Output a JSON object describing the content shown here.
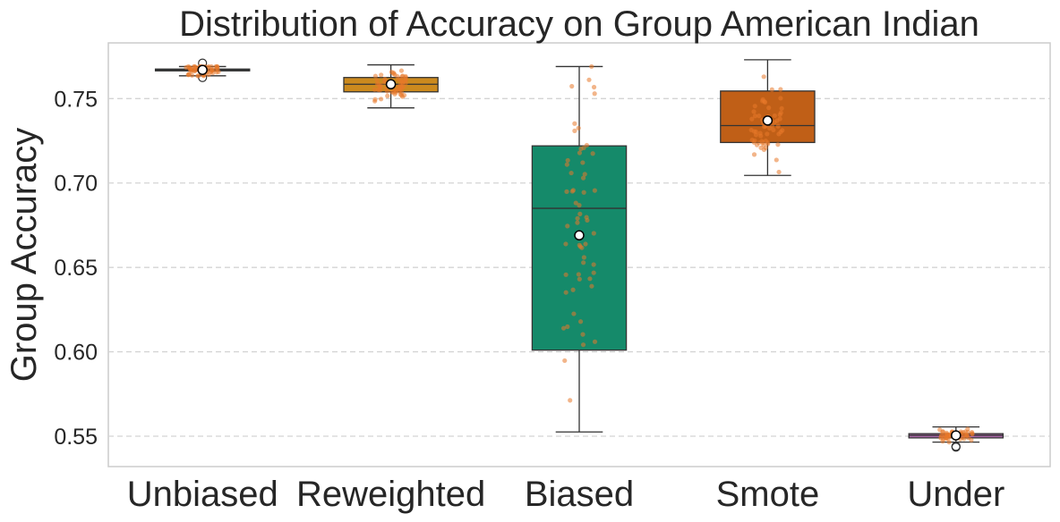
{
  "chart_data": {
    "type": "box",
    "title": "Distribution of Accuracy on Group American Indian",
    "xlabel": "",
    "ylabel": "Group Accuracy",
    "ylim": [
      0.532,
      0.783
    ],
    "yticks": [
      "0.55",
      "0.60",
      "0.65",
      "0.70",
      "0.75"
    ],
    "grid": "y dashed",
    "legend": "none",
    "point_color": "#e8782a",
    "categories": [
      "Unbiased",
      "Reweighted",
      "Biased",
      "Smote",
      "Under"
    ],
    "series": [
      {
        "category": "Unbiased",
        "color": "#1f3f5b",
        "whisker_low": 0.7635,
        "q1": 0.7665,
        "median": 0.767,
        "q3": 0.7675,
        "whisker_high": 0.769,
        "mean": 0.767,
        "outliers": [
          0.7625,
          0.771
        ],
        "spread": 0.0025
      },
      {
        "category": "Reweighted",
        "color": "#cc8a1e",
        "whisker_low": 0.7445,
        "q1": 0.754,
        "median": 0.7585,
        "q3": 0.7625,
        "whisker_high": 0.77,
        "mean": 0.7585,
        "outliers": [],
        "spread": 0.0055
      },
      {
        "category": "Biased",
        "color": "#158a6a",
        "whisker_low": 0.5525,
        "q1": 0.601,
        "median": 0.685,
        "q3": 0.722,
        "whisker_high": 0.769,
        "mean": 0.669,
        "outliers": [],
        "spread": 0.06
      },
      {
        "category": "Smote",
        "color": "#c05f17",
        "whisker_low": 0.7045,
        "q1": 0.724,
        "median": 0.734,
        "q3": 0.7545,
        "whisker_high": 0.773,
        "mean": 0.737,
        "outliers": [],
        "spread": 0.017
      },
      {
        "category": "Under",
        "color": "#b06aae",
        "whisker_low": 0.5465,
        "q1": 0.549,
        "median": 0.5505,
        "q3": 0.5515,
        "whisker_high": 0.5555,
        "mean": 0.5505,
        "outliers": [
          0.544,
          0.5435
        ],
        "spread": 0.0022
      }
    ]
  }
}
